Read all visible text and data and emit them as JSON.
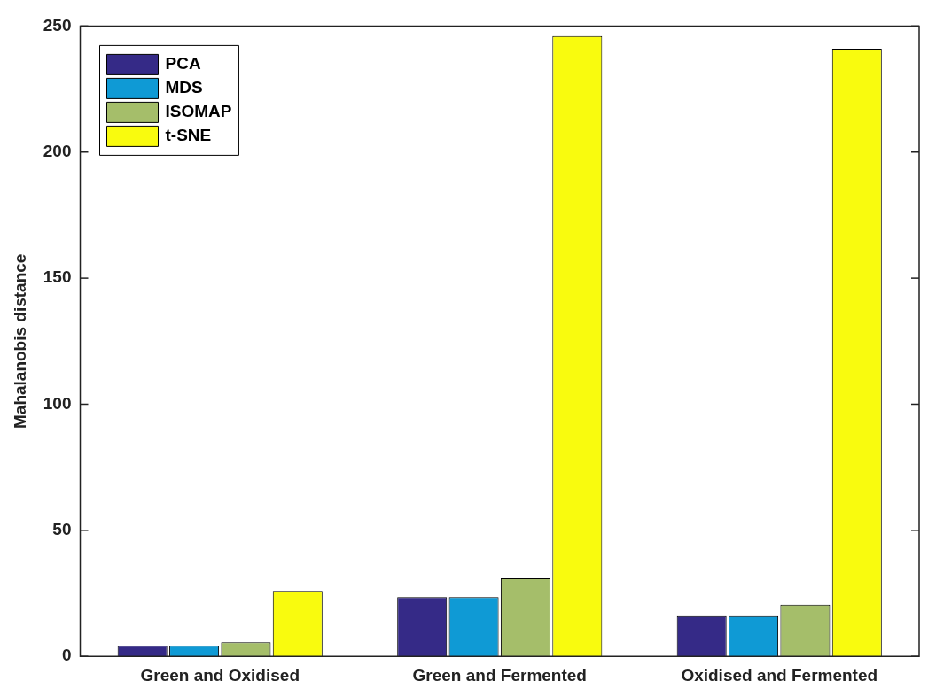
{
  "chart_data": {
    "type": "bar",
    "ylabel": "Mahalanobis distance",
    "categories": [
      "Green and Oxidised",
      "Green and Fermented",
      "Oxidised and Fermented"
    ],
    "series": [
      {
        "name": "PCA",
        "color": "#352a87",
        "values": [
          4.2,
          23.5,
          16
        ]
      },
      {
        "name": "MDS",
        "color": "#0f9ad5",
        "values": [
          4.2,
          23.5,
          16
        ]
      },
      {
        "name": "ISOMAP",
        "color": "#a5be6a",
        "values": [
          5.6,
          31,
          20.5
        ]
      },
      {
        "name": "t-SNE",
        "color": "#f9fb0e",
        "values": [
          26,
          246,
          241
        ]
      }
    ],
    "ylim": [
      0,
      250
    ],
    "yticks": [
      0,
      50,
      100,
      150,
      200,
      250
    ],
    "grid": false,
    "legend": "top left"
  }
}
